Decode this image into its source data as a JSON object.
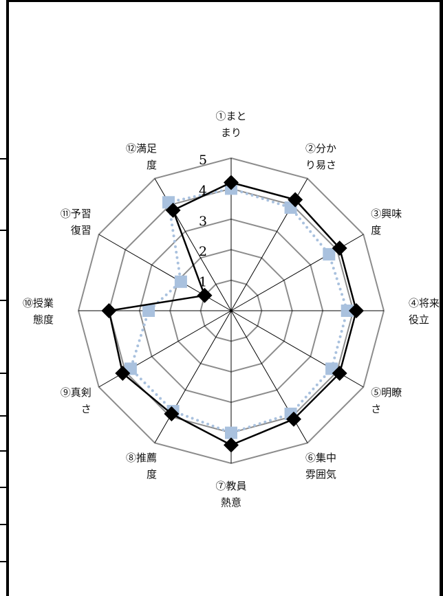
{
  "chart_data": {
    "type": "radar",
    "axes": [
      [
        "①まと",
        "まり"
      ],
      [
        "②分か",
        "り易さ"
      ],
      [
        "③興味",
        "度"
      ],
      [
        "④将来",
        "役立"
      ],
      [
        "⑤明瞭",
        "さ"
      ],
      [
        "⑥集中",
        "雰囲気"
      ],
      [
        "⑦教員",
        "熱意"
      ],
      [
        "⑧推薦",
        "度"
      ],
      [
        "⑨真剣",
        "さ"
      ],
      [
        "⑩授業",
        "態度"
      ],
      [
        "⑪予習",
        "復習"
      ],
      [
        "⑫満足",
        "度"
      ]
    ],
    "scale": {
      "min": 1,
      "max": 5,
      "ticks": [
        "1",
        "2",
        "3",
        "4",
        "5"
      ]
    },
    "series": [
      {
        "values": [
          4.2,
          4.2,
          4.1,
          4.1,
          4.1,
          4.1,
          4.4,
          3.9,
          4.1,
          4.0,
          1.0,
          3.8
        ],
        "color": "#000000",
        "marker": "diamond",
        "line": "solid"
      },
      {
        "values": [
          4.0,
          3.9,
          3.7,
          3.8,
          3.8,
          3.9,
          4.0,
          3.8,
          3.8,
          2.7,
          1.9,
          4.1
        ],
        "color": "#a9c1de",
        "marker": "square",
        "line": "dotted"
      }
    ]
  }
}
